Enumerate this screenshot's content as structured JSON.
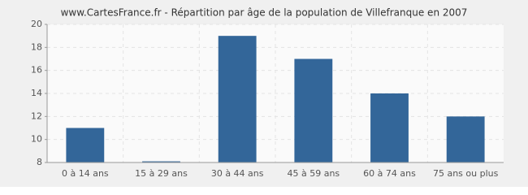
{
  "chart_data": {
    "type": "bar",
    "title": "www.CartesFrance.fr - Répartition par âge de la population de Villefranque en 2007",
    "categories": [
      "0 à 14 ans",
      "15 à 29 ans",
      "30 à 44 ans",
      "45 à 59 ans",
      "60 à 74 ans",
      "75 ans ou plus"
    ],
    "values": [
      11,
      8.1,
      19,
      17,
      14,
      12
    ],
    "color": "#336699",
    "ylim": [
      8,
      20
    ],
    "yticks": [
      8,
      10,
      12,
      14,
      16,
      18,
      20
    ],
    "grid": true
  }
}
